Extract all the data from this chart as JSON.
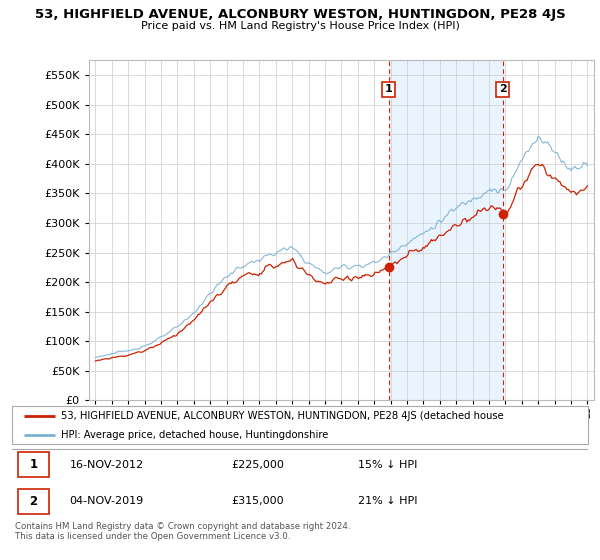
{
  "title": "53, HIGHFIELD AVENUE, ALCONBURY WESTON, HUNTINGDON, PE28 4JS",
  "subtitle": "Price paid vs. HM Land Registry's House Price Index (HPI)",
  "sale1_date": "16-NOV-2012",
  "sale1_price": 225000,
  "sale1_label": "1",
  "sale1_year": 2012.88,
  "sale2_date": "04-NOV-2019",
  "sale2_price": 315000,
  "sale2_label": "2",
  "sale2_year": 2019.84,
  "legend_line1": "53, HIGHFIELD AVENUE, ALCONBURY WESTON, HUNTINGDON, PE28 4JS (detached house",
  "legend_line2": "HPI: Average price, detached house, Huntingdonshire",
  "footer": "Contains HM Land Registry data © Crown copyright and database right 2024.\nThis data is licensed under the Open Government Licence v3.0.",
  "hpi_color": "#7ab0d4",
  "price_color": "#cc2200",
  "vline_color": "#cc2200",
  "shade_color": "#ddeeff",
  "ylim_max": 575000,
  "xlim_start": 1994.6,
  "xlim_end": 2025.4,
  "hpi_annual": [
    73000,
    79000,
    84000,
    92000,
    106000,
    124000,
    148000,
    181000,
    210000,
    228000,
    238000,
    250000,
    258000,
    232000,
    215000,
    226000,
    228000,
    232000,
    248000,
    268000,
    282000,
    302000,
    325000,
    342000,
    358000,
    352000,
    405000,
    450000,
    420000,
    390000,
    405000
  ],
  "hpi_years": [
    1995,
    1996,
    1997,
    1998,
    1999,
    2000,
    2001,
    2002,
    2003,
    2004,
    2005,
    2006,
    2007,
    2008,
    2009,
    2010,
    2011,
    2012,
    2013,
    2014,
    2015,
    2016,
    2017,
    2018,
    2019,
    2020,
    2021,
    2022,
    2023,
    2024,
    2025
  ]
}
